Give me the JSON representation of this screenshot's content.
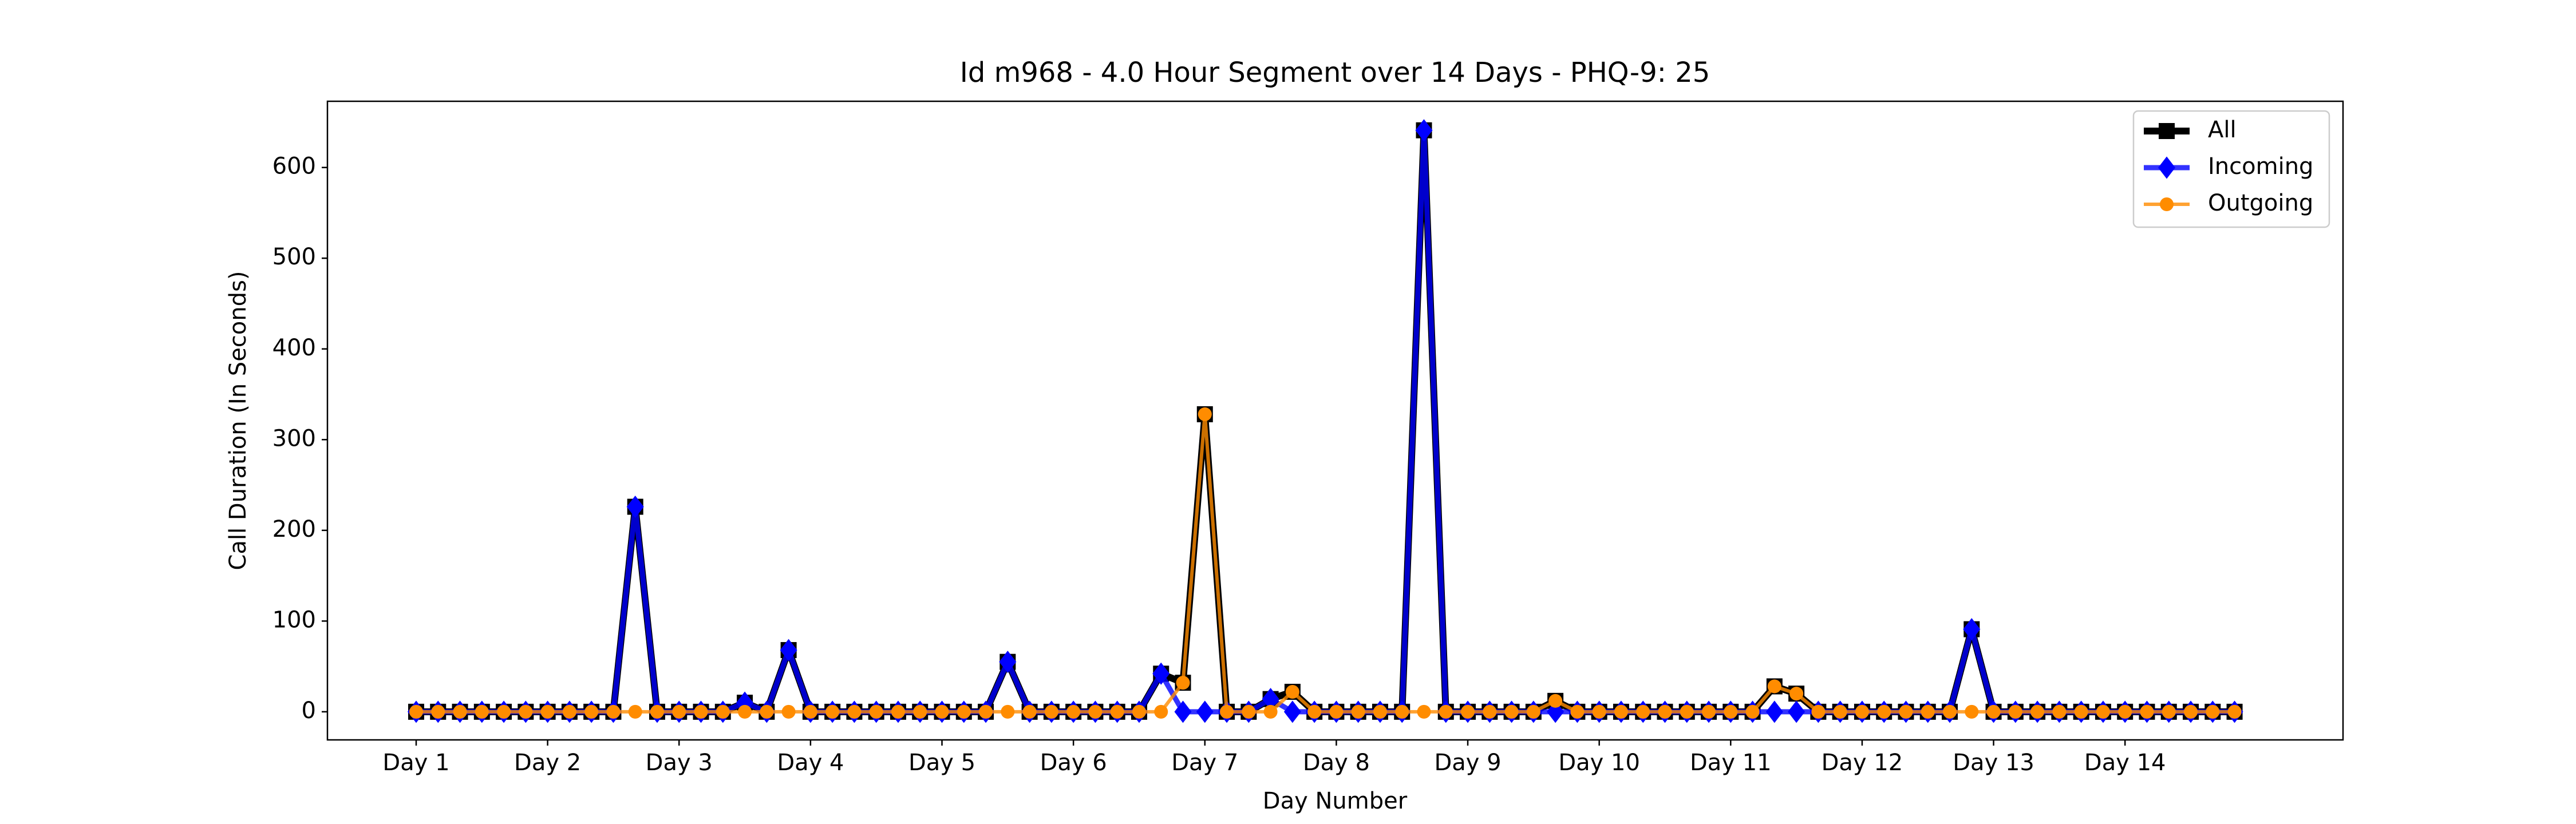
{
  "chart_data": {
    "type": "line",
    "title": "Id m968 - 4.0 Hour Segment over 14 Days - PHQ-9: 25",
    "x_label": "Day Number",
    "y_label": "Call Duration (In Seconds)",
    "categories": [
      "Day 1",
      null,
      null,
      null,
      null,
      null,
      "Day 2",
      null,
      null,
      null,
      null,
      null,
      "Day 3",
      null,
      null,
      null,
      null,
      null,
      "Day 4",
      null,
      null,
      null,
      null,
      null,
      "Day 5",
      null,
      null,
      null,
      null,
      null,
      "Day 6",
      null,
      null,
      null,
      null,
      null,
      "Day 7",
      null,
      null,
      null,
      null,
      null,
      "Day 8",
      null,
      null,
      null,
      null,
      null,
      "Day 9",
      null,
      null,
      null,
      null,
      null,
      "Day 10",
      null,
      null,
      null,
      null,
      null,
      "Day 11",
      null,
      null,
      null,
      null,
      null,
      "Day 12",
      null,
      null,
      null,
      null,
      null,
      "Day 13",
      null,
      null,
      null,
      null,
      null,
      "Day 14",
      null,
      null,
      null,
      null,
      null
    ],
    "series": [
      {
        "name": "All",
        "color": "#000000",
        "marker": "square",
        "values": [
          0,
          0,
          0,
          0,
          0,
          0,
          0,
          0,
          0,
          0,
          226,
          0,
          0,
          0,
          0,
          10,
          0,
          68,
          0,
          0,
          0,
          0,
          0,
          0,
          0,
          0,
          0,
          55,
          0,
          0,
          0,
          0,
          0,
          0,
          42,
          32,
          328,
          0,
          0,
          14,
          22,
          0,
          0,
          0,
          0,
          0,
          641,
          0,
          0,
          0,
          0,
          0,
          12,
          0,
          0,
          0,
          0,
          0,
          0,
          0,
          0,
          0,
          28,
          20,
          0,
          0,
          0,
          0,
          0,
          0,
          0,
          91,
          0,
          0,
          0,
          0,
          0,
          0,
          0,
          0,
          0,
          0,
          0,
          0
        ]
      },
      {
        "name": "Incoming",
        "color": "#0000ff",
        "marker": "diamond",
        "values": [
          0,
          0,
          0,
          0,
          0,
          0,
          0,
          0,
          0,
          0,
          226,
          0,
          0,
          0,
          0,
          10,
          0,
          68,
          0,
          0,
          0,
          0,
          0,
          0,
          0,
          0,
          0,
          55,
          0,
          0,
          0,
          0,
          0,
          0,
          42,
          0,
          0,
          0,
          0,
          14,
          0,
          0,
          0,
          0,
          0,
          0,
          641,
          0,
          0,
          0,
          0,
          0,
          0,
          0,
          0,
          0,
          0,
          0,
          0,
          0,
          0,
          0,
          0,
          0,
          0,
          0,
          0,
          0,
          0,
          0,
          0,
          91,
          0,
          0,
          0,
          0,
          0,
          0,
          0,
          0,
          0,
          0,
          0,
          0
        ]
      },
      {
        "name": "Outgoing",
        "color": "#ff8c00",
        "marker": "circle",
        "values": [
          0,
          0,
          0,
          0,
          0,
          0,
          0,
          0,
          0,
          0,
          0,
          0,
          0,
          0,
          0,
          0,
          0,
          0,
          0,
          0,
          0,
          0,
          0,
          0,
          0,
          0,
          0,
          0,
          0,
          0,
          0,
          0,
          0,
          0,
          0,
          32,
          328,
          0,
          0,
          0,
          22,
          0,
          0,
          0,
          0,
          0,
          0,
          0,
          0,
          0,
          0,
          0,
          12,
          0,
          0,
          0,
          0,
          0,
          0,
          0,
          0,
          0,
          28,
          20,
          0,
          0,
          0,
          0,
          0,
          0,
          0,
          0,
          0,
          0,
          0,
          0,
          0,
          0,
          0,
          0,
          0,
          0,
          0,
          0
        ]
      }
    ],
    "ylim": [
      -31,
      673
    ],
    "yticks": [
      0,
      100,
      200,
      300,
      400,
      500,
      600
    ],
    "legend": "upper right"
  }
}
